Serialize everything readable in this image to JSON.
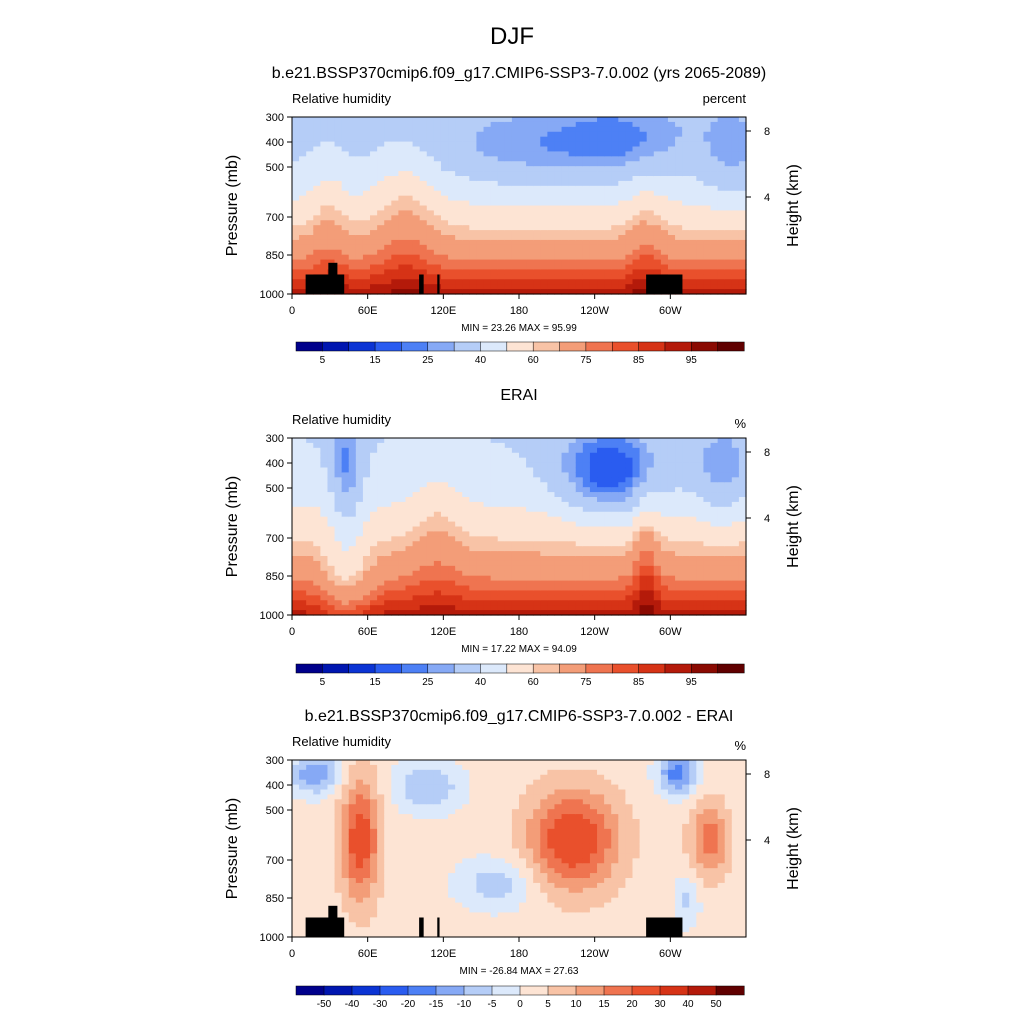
{
  "figure": {
    "title": "DJF",
    "panel_titles": [
      "b.e21.BSSP370cmip6.f09_g17.CMIP6-SSP3-7.0.002 (yrs 2065-2089)",
      "ERAI",
      "b.e21.BSSP370cmip6.f09_g17.CMIP6-SSP3-7.0.002 - ERAI"
    ]
  },
  "chart_data": [
    {
      "type": "heatmap",
      "title": "b.e21.BSSP370cmip6.f09_g17.CMIP6-SSP3-7.0.002 (yrs 2065-2089)",
      "left_label": "Relative humidity",
      "right_label": "percent",
      "ylabel": "Pressure (mb)",
      "ylabel_right": "Height (km)",
      "xticks": [
        "0",
        "60E",
        "120E",
        "180",
        "120W",
        "60W"
      ],
      "yticks": [
        "300",
        "400",
        "500",
        "700",
        "850",
        "1000"
      ],
      "yticks_right": [
        "8",
        "4"
      ],
      "stats": "MIN =  23.26  MAX =  95.99",
      "colorbar_labels": [
        "5",
        "15",
        "25",
        "40",
        "60",
        "75",
        "85",
        "95"
      ],
      "min": 23.26,
      "max": 95.99,
      "topography_mask": true
    },
    {
      "type": "heatmap",
      "title": "ERAI",
      "left_label": "Relative humidity",
      "right_label": "%",
      "ylabel": "Pressure (mb)",
      "ylabel_right": "Height (km)",
      "xticks": [
        "0",
        "60E",
        "120E",
        "180",
        "120W",
        "60W"
      ],
      "yticks": [
        "300",
        "400",
        "500",
        "700",
        "850",
        "1000"
      ],
      "yticks_right": [
        "8",
        "4"
      ],
      "stats": "MIN =  17.22  MAX =  94.09",
      "colorbar_labels": [
        "5",
        "15",
        "25",
        "40",
        "60",
        "75",
        "85",
        "95"
      ],
      "min": 17.22,
      "max": 94.09,
      "topography_mask": false
    },
    {
      "type": "heatmap",
      "title": "b.e21.BSSP370cmip6.f09_g17.CMIP6-SSP3-7.0.002 - ERAI",
      "left_label": "Relative humidity",
      "right_label": "%",
      "ylabel": "Pressure (mb)",
      "ylabel_right": "Height (km)",
      "xticks": [
        "0",
        "60E",
        "120E",
        "180",
        "120W",
        "60W"
      ],
      "yticks": [
        "300",
        "400",
        "500",
        "700",
        "850",
        "1000"
      ],
      "yticks_right": [
        "8",
        "4"
      ],
      "stats": "MIN = -26.84  MAX =  27.63",
      "colorbar_labels": [
        "-50",
        "-40",
        "-30",
        "-20",
        "-15",
        "-10",
        "-5",
        "0",
        "5",
        "10",
        "15",
        "20",
        "30",
        "40",
        "50"
      ],
      "min": -26.84,
      "max": 27.63,
      "topography_mask": true
    }
  ],
  "colors": {
    "abs_palette": [
      "#00008b",
      "#0016b0",
      "#0b34d4",
      "#2a5cf0",
      "#4d80f5",
      "#86a9f5",
      "#b5cdf7",
      "#dce9fb",
      "#fde4d4",
      "#f8c3a6",
      "#f39d78",
      "#ef7450",
      "#e9502c",
      "#d63316",
      "#b41a0a",
      "#8a0a02",
      "#600000"
    ],
    "diff_palette": [
      "#00008b",
      "#0016b0",
      "#0b34d4",
      "#2a5cf0",
      "#4d80f5",
      "#86a9f5",
      "#b5cdf7",
      "#dce9fb",
      "#fde4d4",
      "#f8c3a6",
      "#f39d78",
      "#ef7450",
      "#e9502c",
      "#d63316",
      "#b41a0a",
      "#600000"
    ],
    "mask": "#000000"
  }
}
